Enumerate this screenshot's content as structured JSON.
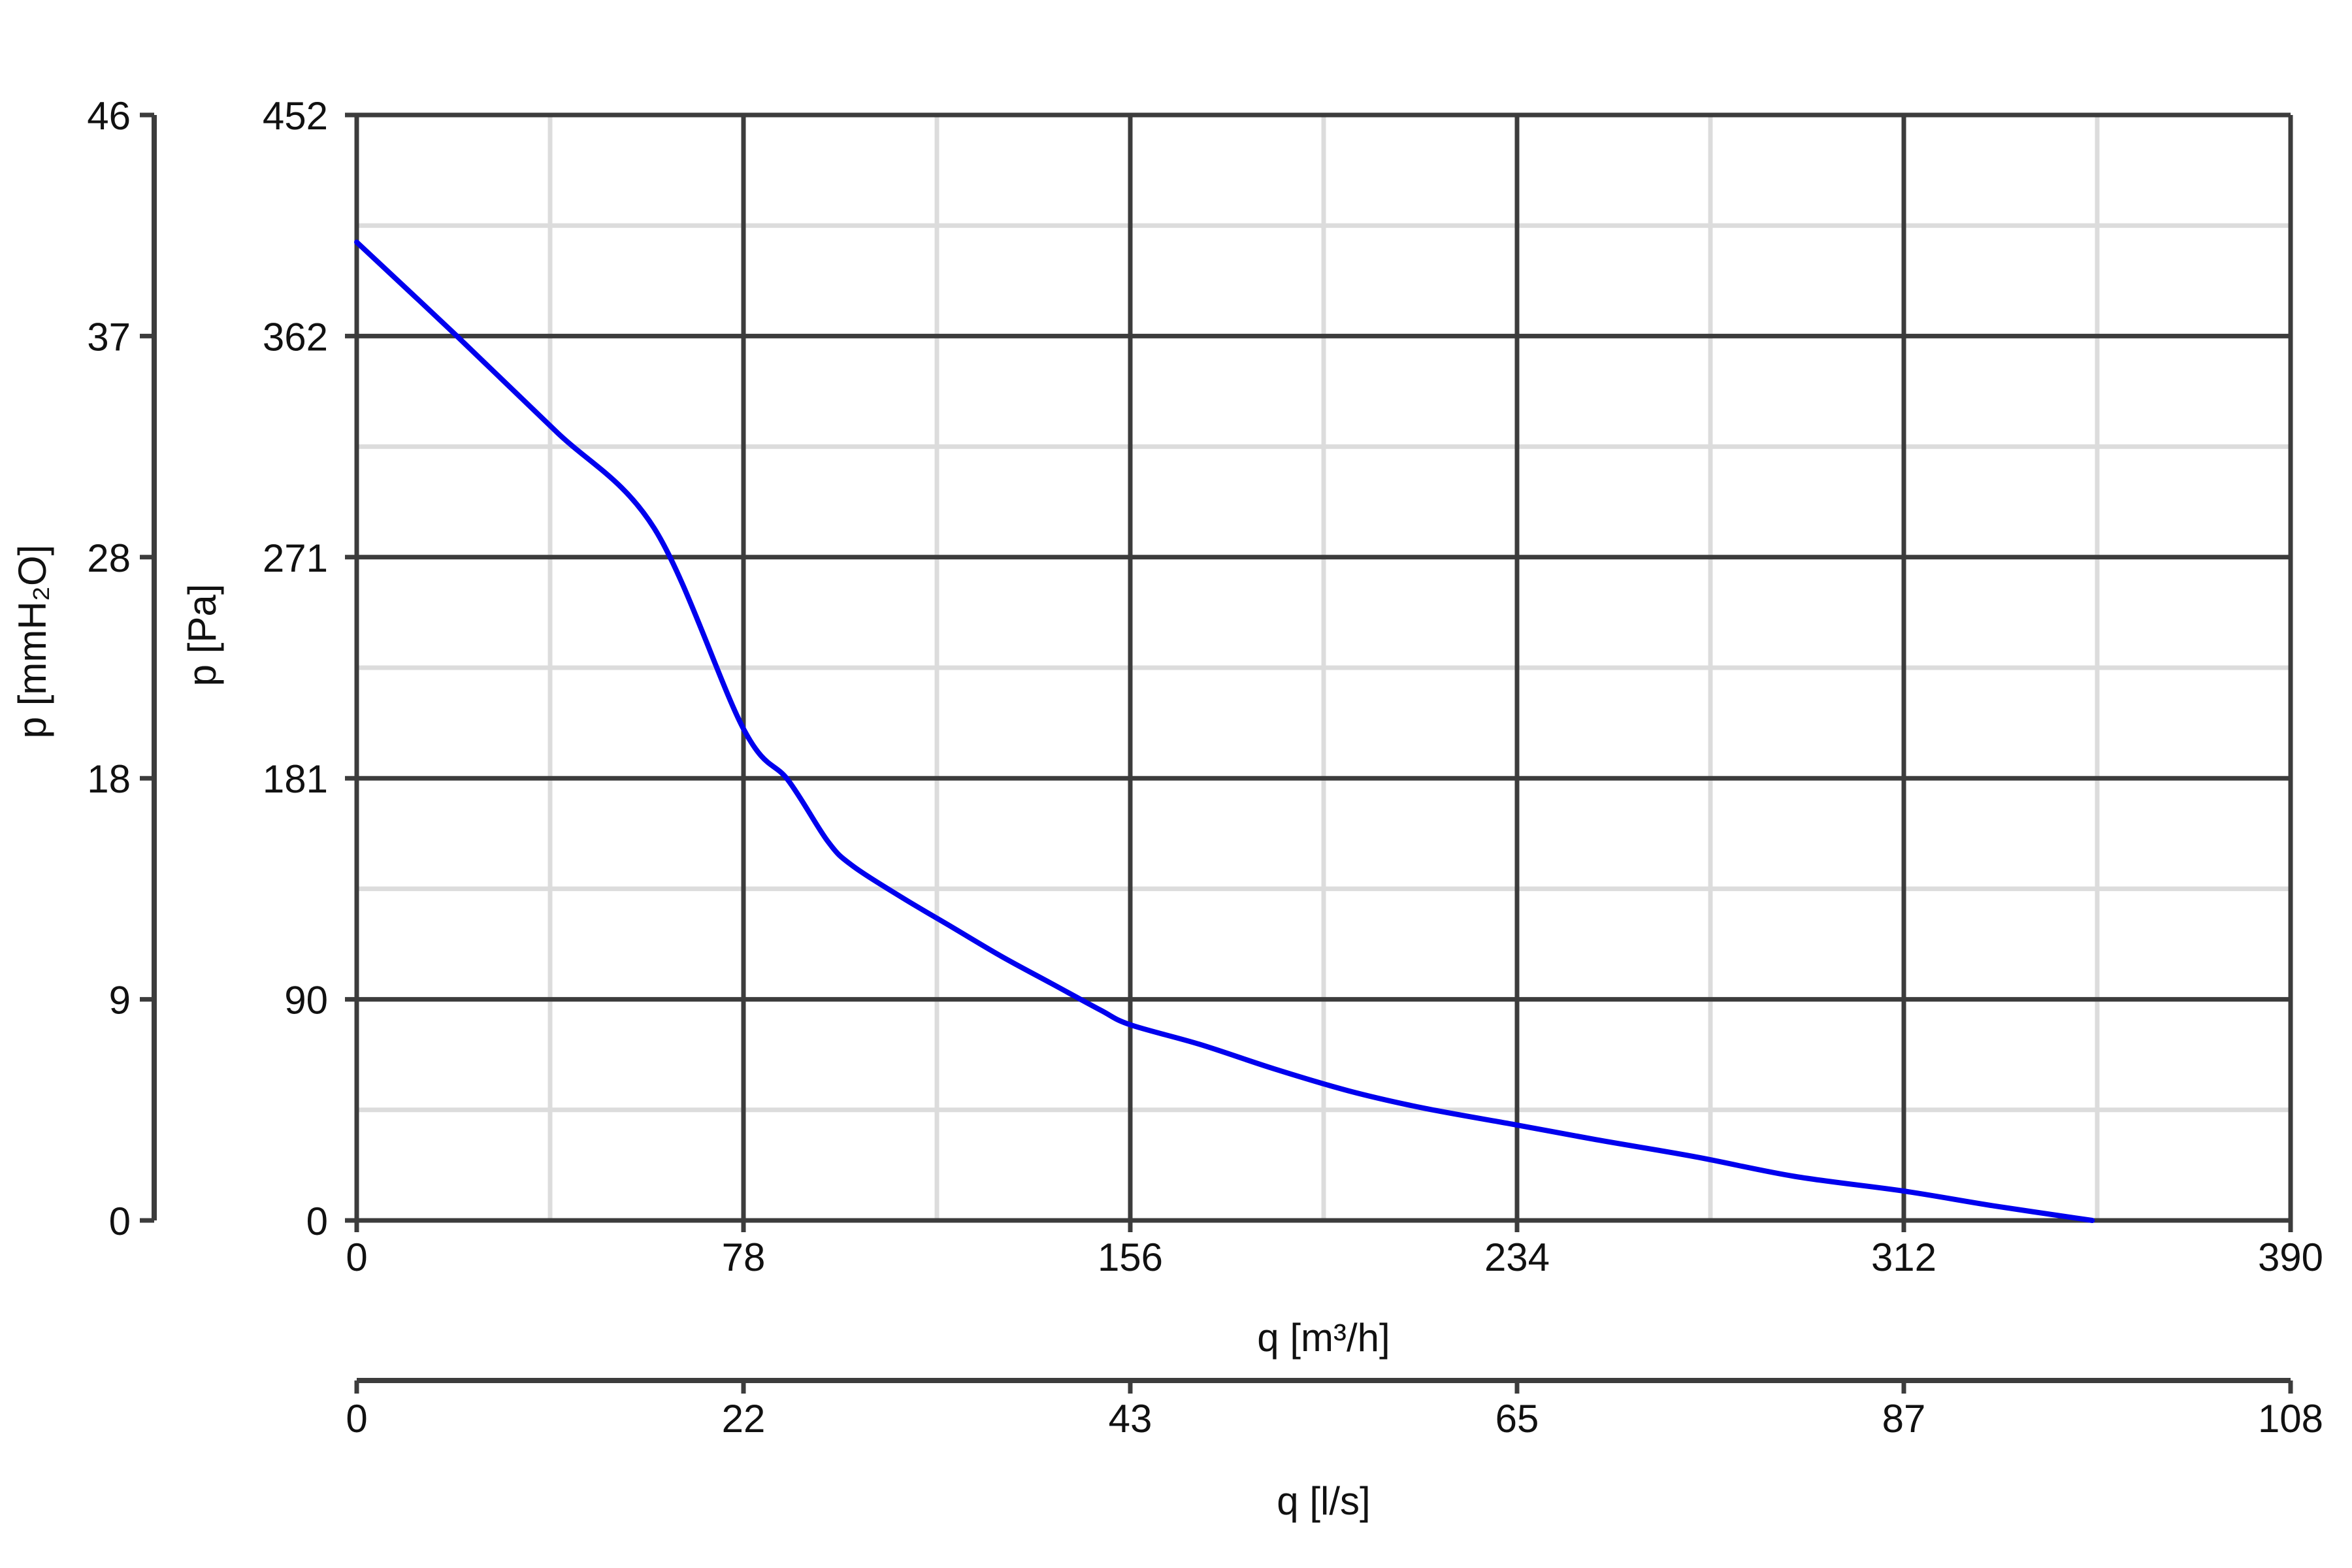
{
  "chart_data": {
    "type": "line",
    "primary_x_axis": {
      "label": "q [m³/h]",
      "ticks": [
        "0",
        "78",
        "156",
        "234",
        "312",
        "390"
      ],
      "range": [
        0,
        390
      ]
    },
    "secondary_x_axis": {
      "label": "q [l/s]",
      "ticks": [
        "0",
        "22",
        "43",
        "65",
        "87",
        "108"
      ]
    },
    "primary_y_axis": {
      "label": "p [Pa]",
      "ticks": [
        "0",
        "90",
        "181",
        "271",
        "362",
        "452"
      ],
      "range": [
        0,
        452
      ]
    },
    "secondary_y_axis": {
      "label": "p [mmH₂O]",
      "ticks": [
        "0",
        "9",
        "18",
        "28",
        "37",
        "46"
      ]
    },
    "grid": true,
    "series": [
      {
        "color": "#0000ee",
        "x": [
          0,
          20,
          40,
          60,
          78,
          87,
          95,
          100,
          110,
          120,
          130,
          140,
          150,
          156,
          170,
          185,
          200,
          215,
          234,
          250,
          270,
          290,
          312,
          330,
          350
        ],
        "y": [
          400,
          362,
          323,
          283,
          201,
          180,
          155,
          145,
          132,
          120,
          108,
          97,
          86,
          80,
          72,
          62,
          53,
          46,
          39,
          33,
          26,
          18,
          12,
          6,
          0
        ]
      }
    ]
  }
}
